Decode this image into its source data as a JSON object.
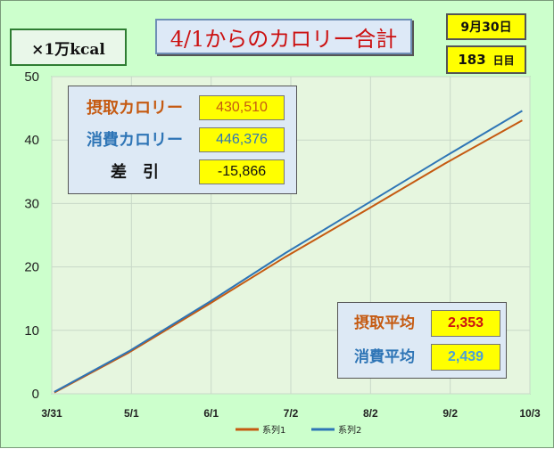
{
  "header": {
    "unit_label": "×1万kcal",
    "title": "4/1からのカロリー合計",
    "date": "9月30日",
    "day_count": "183",
    "day_unit": "日目"
  },
  "colors": {
    "intake": "#c55a11",
    "expend": "#2e75b6",
    "plot_bg": "#e6f6df",
    "grid": "#c8d8c8"
  },
  "summary": {
    "intake_label": "摂取カロリー",
    "intake_value": "430,510",
    "expend_label": "消費カロリー",
    "expend_value": "446,376",
    "diff_label": "差　引",
    "diff_value": "-15,866"
  },
  "averages": {
    "intake_label": "摂取平均",
    "intake_value": "2,353",
    "expend_label": "消費平均",
    "expend_value": "2,439"
  },
  "chart_data": {
    "type": "line",
    "ylabel": "×1万kcal",
    "ylim": [
      0,
      50
    ],
    "yticks": [
      "0",
      "10",
      "20",
      "30",
      "40",
      "50"
    ],
    "xlim": [
      "3/31",
      "10/3"
    ],
    "xticks": [
      "3/31",
      "5/1",
      "6/1",
      "7/2",
      "8/2",
      "9/2",
      "10/3"
    ],
    "grid": true,
    "legend_position": "bottom",
    "x": [
      "4/1",
      "4/30",
      "5/31",
      "6/30",
      "7/31",
      "8/31",
      "9/30"
    ],
    "series": [
      {
        "name": "系列1",
        "color": "#c55a11",
        "values": [
          0.2,
          6.5,
          14.1,
          21.6,
          28.9,
          36.3,
          43.1
        ]
      },
      {
        "name": "系列2",
        "color": "#2e75b6",
        "values": [
          0.3,
          6.7,
          14.4,
          22.2,
          29.8,
          37.4,
          44.6
        ]
      }
    ]
  }
}
